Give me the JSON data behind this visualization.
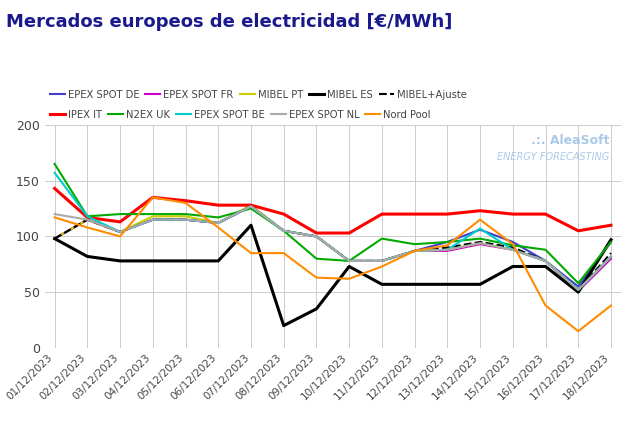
{
  "title": "Mercados europeos de electricidad [€/MWh]",
  "title_color": "#1a1a8c",
  "background_color": "#ffffff",
  "grid_color": "#cccccc",
  "dates": [
    "01/12/2023",
    "02/12/2023",
    "03/12/2023",
    "04/12/2023",
    "05/12/2023",
    "06/12/2023",
    "07/12/2023",
    "08/12/2023",
    "09/12/2023",
    "10/12/2023",
    "11/12/2023",
    "12/12/2023",
    "13/12/2023",
    "14/12/2023",
    "15/12/2023",
    "16/12/2023",
    "17/12/2023",
    "18/12/2023"
  ],
  "series": {
    "EPEX SPOT DE": {
      "color": "#4040cc",
      "linestyle": "-",
      "linewidth": 1.5,
      "values": [
        98,
        115,
        104,
        115,
        115,
        112,
        127,
        105,
        100,
        78,
        78,
        87,
        95,
        106,
        95,
        78,
        55,
        95
      ]
    },
    "EPEX SPOT FR": {
      "color": "#cc00cc",
      "linestyle": "-",
      "linewidth": 1.5,
      "values": [
        98,
        115,
        104,
        115,
        115,
        112,
        127,
        105,
        100,
        78,
        78,
        87,
        87,
        93,
        88,
        78,
        51,
        80
      ]
    },
    "MIBEL PT": {
      "color": "#cccc00",
      "linestyle": "-",
      "linewidth": 1.5,
      "values": [
        98,
        115,
        104,
        118,
        118,
        112,
        128,
        105,
        100,
        78,
        78,
        87,
        88,
        94,
        88,
        78,
        52,
        82
      ]
    },
    "MIBEL ES": {
      "color": "#000000",
      "linestyle": "-",
      "linewidth": 2.2,
      "values": [
        98,
        82,
        78,
        78,
        78,
        78,
        110,
        20,
        35,
        73,
        57,
        57,
        57,
        57,
        73,
        73,
        50,
        97
      ]
    },
    "MIBEL+Ajuste": {
      "color": "#000000",
      "linestyle": "--",
      "linewidth": 1.5,
      "values": [
        98,
        115,
        104,
        115,
        115,
        112,
        127,
        105,
        100,
        78,
        78,
        87,
        90,
        95,
        90,
        78,
        52,
        85
      ]
    },
    "IPEX IT": {
      "color": "#ff0000",
      "linestyle": "-",
      "linewidth": 2.2,
      "values": [
        143,
        117,
        113,
        135,
        132,
        128,
        128,
        120,
        103,
        103,
        120,
        120,
        120,
        123,
        120,
        120,
        105,
        110
      ]
    },
    "N2EX UK": {
      "color": "#00aa00",
      "linestyle": "-",
      "linewidth": 1.5,
      "values": [
        165,
        118,
        120,
        120,
        120,
        117,
        125,
        105,
        80,
        78,
        98,
        93,
        95,
        98,
        92,
        88,
        58,
        95
      ]
    },
    "EPEX SPOT BE": {
      "color": "#00cccc",
      "linestyle": "-",
      "linewidth": 1.5,
      "values": [
        157,
        118,
        104,
        115,
        115,
        112,
        127,
        105,
        100,
        78,
        78,
        87,
        88,
        107,
        88,
        78,
        52,
        82
      ]
    },
    "EPEX SPOT NL": {
      "color": "#aaaaaa",
      "linestyle": "-",
      "linewidth": 1.5,
      "values": [
        120,
        115,
        104,
        115,
        115,
        112,
        127,
        105,
        100,
        78,
        78,
        87,
        88,
        94,
        88,
        78,
        52,
        82
      ]
    },
    "Nord Pool": {
      "color": "#ff8c00",
      "linestyle": "-",
      "linewidth": 1.5,
      "values": [
        117,
        108,
        100,
        135,
        130,
        108,
        85,
        85,
        63,
        62,
        73,
        87,
        92,
        115,
        93,
        38,
        15,
        38
      ]
    }
  },
  "ylim": [
    0,
    200
  ],
  "yticks": [
    0,
    50,
    100,
    150,
    200
  ],
  "watermark_line1": ".:. AleaSoft",
  "watermark_line2": "ENERGY FORECASTING",
  "watermark_color": "#aac8e8",
  "legend_row1": [
    "EPEX SPOT DE",
    "EPEX SPOT FR",
    "MIBEL PT",
    "MIBEL ES",
    "MIBEL+Ajuste"
  ],
  "legend_row2": [
    "IPEX IT",
    "N2EX UK",
    "EPEX SPOT BE",
    "EPEX SPOT NL",
    "Nord Pool"
  ]
}
